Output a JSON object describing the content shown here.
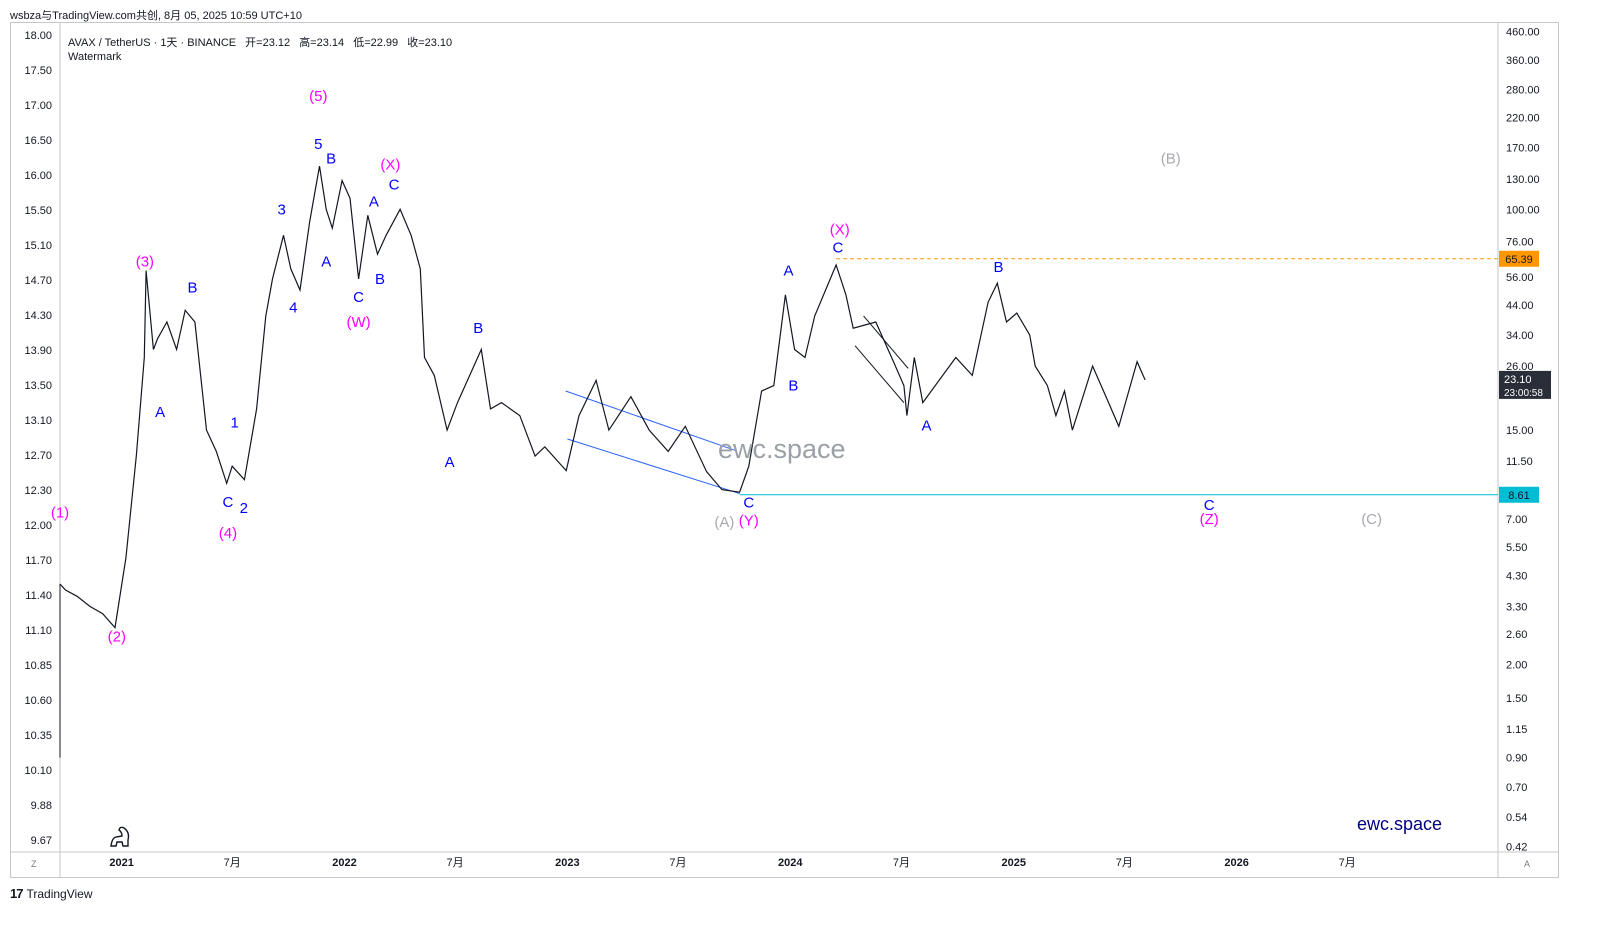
{
  "header": {
    "attribution": "wsbza与TradingView.com共创, 8月 05, 2025 10:59 UTC+10"
  },
  "legend": {
    "symbol": "AVAX / TetherUS · 1天 · BINANCE",
    "open": "开=23.12",
    "high": "高=23.14",
    "low": "低=22.99",
    "close": "收=23.10",
    "watermark_label": "Watermark"
  },
  "watermark": {
    "center_text": "ewc.space",
    "brand_text": "ewc.space"
  },
  "footer": {
    "logo": "17",
    "brand": "TradingView"
  },
  "corner_buttons": {
    "left": "Z",
    "right": "A"
  },
  "colors": {
    "wave_primary": "#ff00ff",
    "wave_minor": "#0000ff",
    "wave_gray": "#a8a8b0",
    "price_line": "#131722",
    "resistance": "#ff9800",
    "support": "#00bcd4",
    "last_price_bg": "#2a2e39"
  },
  "chart_data": {
    "type": "line",
    "title": "AVAX / TetherUS · 1天 · BINANCE",
    "scale": "log",
    "right_axis_ticks": [
      "460.00",
      "360.00",
      "280.00",
      "220.00",
      "170.00",
      "130.00",
      "100.00",
      "76.00",
      "56.00",
      "44.00",
      "34.00",
      "26.00",
      "15.00",
      "11.50",
      "7.00",
      "5.50",
      "4.30",
      "3.30",
      "2.60",
      "2.00",
      "1.50",
      "1.15",
      "0.90",
      "0.70",
      "0.54",
      "0.42"
    ],
    "right_axis_values": [
      460,
      360,
      280,
      220,
      170,
      130,
      100,
      76,
      56,
      44,
      34,
      26,
      15,
      11.5,
      7,
      5.5,
      4.3,
      3.3,
      2.6,
      2.0,
      1.5,
      1.15,
      0.9,
      0.7,
      0.54,
      0.42
    ],
    "left_axis_ticks": [
      "18.00",
      "17.50",
      "17.00",
      "16.50",
      "16.00",
      "15.50",
      "15.10",
      "14.70",
      "14.30",
      "13.90",
      "13.50",
      "13.10",
      "12.70",
      "12.30",
      "12.00",
      "11.70",
      "11.40",
      "11.10",
      "10.85",
      "10.60",
      "10.35",
      "10.10",
      "9.88",
      "9.67"
    ],
    "x_ticks": [
      {
        "label": "2021",
        "date": "2021-01-01",
        "bold": true
      },
      {
        "label": "7月",
        "date": "2021-07-01",
        "bold": false
      },
      {
        "label": "2022",
        "date": "2022-01-01",
        "bold": true
      },
      {
        "label": "7月",
        "date": "2022-07-01",
        "bold": false
      },
      {
        "label": "2023",
        "date": "2023-01-01",
        "bold": true
      },
      {
        "label": "7月",
        "date": "2023-07-01",
        "bold": false
      },
      {
        "label": "2024",
        "date": "2024-01-01",
        "bold": true
      },
      {
        "label": "7月",
        "date": "2024-07-01",
        "bold": false
      },
      {
        "label": "2025",
        "date": "2025-01-01",
        "bold": true
      },
      {
        "label": "7月",
        "date": "2025-07-01",
        "bold": false
      },
      {
        "label": "2026",
        "date": "2026-01-01",
        "bold": true
      },
      {
        "label": "7月",
        "date": "2026-07-01",
        "bold": false
      }
    ],
    "x_range": [
      "2020-09-22",
      "2027-03-05"
    ],
    "y_range": [
      0.4,
      500
    ],
    "series": [
      {
        "values": [
          [
            "2020-09-22",
            4.0
          ],
          [
            "2020-10-01",
            3.8
          ],
          [
            "2020-10-20",
            3.6
          ],
          [
            "2020-11-10",
            3.3
          ],
          [
            "2020-12-01",
            3.1
          ],
          [
            "2020-12-21",
            2.75
          ],
          [
            "2021-01-08",
            5.0
          ],
          [
            "2021-01-25",
            12.0
          ],
          [
            "2021-02-07",
            28.0
          ],
          [
            "2021-02-10",
            59.0
          ],
          [
            "2021-02-22",
            30.0
          ],
          [
            "2021-03-01",
            33.0
          ],
          [
            "2021-03-16",
            38.0
          ],
          [
            "2021-04-01",
            30.0
          ],
          [
            "2021-04-15",
            42.0
          ],
          [
            "2021-05-01",
            38.0
          ],
          [
            "2021-05-20",
            15.0
          ],
          [
            "2021-06-05",
            12.5
          ],
          [
            "2021-06-22",
            9.5
          ],
          [
            "2021-07-01",
            11.0
          ],
          [
            "2021-07-21",
            9.8
          ],
          [
            "2021-08-10",
            18.0
          ],
          [
            "2021-08-25",
            40.0
          ],
          [
            "2021-09-05",
            55.0
          ],
          [
            "2021-09-23",
            80.0
          ],
          [
            "2021-10-05",
            60.0
          ],
          [
            "2021-10-20",
            50.0
          ],
          [
            "2021-11-05",
            90.0
          ],
          [
            "2021-11-21",
            145.0
          ],
          [
            "2021-12-02",
            100.0
          ],
          [
            "2021-12-12",
            85.0
          ],
          [
            "2021-12-28",
            128.0
          ],
          [
            "2022-01-10",
            110.0
          ],
          [
            "2022-01-24",
            55.0
          ],
          [
            "2022-02-08",
            95.0
          ],
          [
            "2022-02-24",
            68.0
          ],
          [
            "2022-03-10",
            80.0
          ],
          [
            "2022-04-02",
            100.0
          ],
          [
            "2022-04-20",
            80.0
          ],
          [
            "2022-05-05",
            60.0
          ],
          [
            "2022-05-12",
            28.0
          ],
          [
            "2022-05-28",
            24.0
          ],
          [
            "2022-06-18",
            15.0
          ],
          [
            "2022-07-05",
            19.0
          ],
          [
            "2022-08-13",
            30.0
          ],
          [
            "2022-08-28",
            18.0
          ],
          [
            "2022-09-15",
            19.0
          ],
          [
            "2022-10-15",
            17.0
          ],
          [
            "2022-11-09",
            12.0
          ],
          [
            "2022-11-25",
            13.0
          ],
          [
            "2022-12-30",
            10.6
          ],
          [
            "2023-01-20",
            17.0
          ],
          [
            "2023-02-17",
            23.0
          ],
          [
            "2023-03-10",
            15.0
          ],
          [
            "2023-04-15",
            20.0
          ],
          [
            "2023-05-15",
            15.0
          ],
          [
            "2023-06-15",
            12.5
          ],
          [
            "2023-07-13",
            15.5
          ],
          [
            "2023-08-17",
            10.5
          ],
          [
            "2023-09-11",
            9.0
          ],
          [
            "2023-10-10",
            8.8
          ],
          [
            "2023-10-25",
            11.0
          ],
          [
            "2023-11-15",
            21.0
          ],
          [
            "2023-12-05",
            22.0
          ],
          [
            "2023-12-24",
            48.0
          ],
          [
            "2024-01-08",
            30.0
          ],
          [
            "2024-01-25",
            28.0
          ],
          [
            "2024-02-10",
            40.0
          ],
          [
            "2024-03-16",
            62.0
          ],
          [
            "2024-04-01",
            48.0
          ],
          [
            "2024-04-13",
            36.0
          ],
          [
            "2024-05-20",
            38.0
          ],
          [
            "2024-06-18",
            27.0
          ],
          [
            "2024-07-05",
            22.0
          ],
          [
            "2024-07-10",
            17.0
          ],
          [
            "2024-07-22",
            28.0
          ],
          [
            "2024-08-05",
            19.0
          ],
          [
            "2024-09-28",
            28.0
          ],
          [
            "2024-10-25",
            24.0
          ],
          [
            "2024-11-20",
            45.0
          ],
          [
            "2024-12-05",
            53.0
          ],
          [
            "2024-12-20",
            38.0
          ],
          [
            "2025-01-06",
            41.0
          ],
          [
            "2025-01-27",
            34.0
          ],
          [
            "2025-02-05",
            26.0
          ],
          [
            "2025-02-25",
            22.0
          ],
          [
            "2025-03-11",
            17.0
          ],
          [
            "2025-03-25",
            21.0
          ],
          [
            "2025-04-07",
            15.0
          ],
          [
            "2025-05-10",
            26.0
          ],
          [
            "2025-06-01",
            20.0
          ],
          [
            "2025-06-22",
            15.5
          ],
          [
            "2025-07-22",
            27.0
          ],
          [
            "2025-08-04",
            23.1
          ]
        ]
      }
    ],
    "lines": [
      {
        "kind": "resistance",
        "price": 65.39,
        "label": "65.39",
        "from": "2024-03-16"
      },
      {
        "kind": "support",
        "price": 8.61,
        "label": "8.61",
        "from": "2023-10-10"
      }
    ],
    "last_price": {
      "value": 23.1,
      "label": "23.10",
      "countdown": "23:00:58"
    },
    "trendlines": [
      [
        [
          "2023-01-01",
          13.9
        ],
        [
          "2023-10-10",
          8.7
        ]
      ],
      [
        [
          "2022-12-29",
          21.0
        ],
        [
          "2023-10-03",
          12.6
        ]
      ],
      [
        [
          "2024-04-16",
          31.0
        ],
        [
          "2024-07-05",
          19.0
        ]
      ],
      [
        [
          "2024-04-30",
          40.0
        ],
        [
          "2024-07-12",
          25.5
        ]
      ]
    ],
    "annotations": [
      {
        "text": "(1)",
        "date": "2020-09-22",
        "price": 7.4,
        "color": "primary"
      },
      {
        "text": "(2)",
        "date": "2020-12-24",
        "price": 2.55,
        "color": "primary"
      },
      {
        "text": "(3)",
        "date": "2021-02-08",
        "price": 64.0,
        "color": "primary"
      },
      {
        "text": "A",
        "date": "2021-03-05",
        "price": 17.5,
        "color": "minor"
      },
      {
        "text": "B",
        "date": "2021-04-27",
        "price": 51.0,
        "color": "minor"
      },
      {
        "text": "1",
        "date": "2021-07-05",
        "price": 16.0,
        "color": "minor"
      },
      {
        "text": "C",
        "date": "2021-06-24",
        "price": 8.1,
        "color": "minor"
      },
      {
        "text": "2",
        "date": "2021-07-20",
        "price": 7.7,
        "color": "minor"
      },
      {
        "text": "(4)",
        "date": "2021-06-24",
        "price": 6.2,
        "color": "primary"
      },
      {
        "text": "3",
        "date": "2021-09-20",
        "price": 100.0,
        "color": "minor"
      },
      {
        "text": "4",
        "date": "2021-10-09",
        "price": 43.0,
        "color": "minor"
      },
      {
        "text": "5",
        "date": "2021-11-19",
        "price": 175.0,
        "color": "minor"
      },
      {
        "text": "(5)",
        "date": "2021-11-19",
        "price": 265.0,
        "color": "primary"
      },
      {
        "text": "B",
        "date": "2021-12-10",
        "price": 155.0,
        "color": "minor"
      },
      {
        "text": "A",
        "date": "2021-12-02",
        "price": 64.0,
        "color": "minor"
      },
      {
        "text": "C",
        "date": "2022-01-24",
        "price": 47.0,
        "color": "minor"
      },
      {
        "text": "(W)",
        "date": "2022-01-24",
        "price": 38.0,
        "color": "primary"
      },
      {
        "text": "A",
        "date": "2022-02-18",
        "price": 107.0,
        "color": "minor"
      },
      {
        "text": "B",
        "date": "2022-02-28",
        "price": 55.0,
        "color": "minor"
      },
      {
        "text": "(X)",
        "date": "2022-03-17",
        "price": 147.0,
        "color": "primary"
      },
      {
        "text": "C",
        "date": "2022-03-23",
        "price": 124.0,
        "color": "minor"
      },
      {
        "text": "B",
        "date": "2022-08-08",
        "price": 36.0,
        "color": "minor"
      },
      {
        "text": "A",
        "date": "2022-06-22",
        "price": 11.4,
        "color": "minor"
      },
      {
        "text": "C",
        "date": "2023-10-25",
        "price": 8.05,
        "color": "minor"
      },
      {
        "text": "(Y)",
        "date": "2023-10-25",
        "price": 6.9,
        "color": "primary"
      },
      {
        "text": "(A)",
        "date": "2023-09-15",
        "price": 6.8,
        "color": "gray"
      },
      {
        "text": "A",
        "date": "2023-12-29",
        "price": 59.0,
        "color": "minor"
      },
      {
        "text": "B",
        "date": "2024-01-06",
        "price": 22.0,
        "color": "minor"
      },
      {
        "text": "(X)",
        "date": "2024-03-22",
        "price": 84.0,
        "color": "primary"
      },
      {
        "text": "C",
        "date": "2024-03-19",
        "price": 72.0,
        "color": "minor"
      },
      {
        "text": "A",
        "date": "2024-08-11",
        "price": 15.6,
        "color": "minor"
      },
      {
        "text": "B",
        "date": "2024-12-07",
        "price": 61.0,
        "color": "minor"
      },
      {
        "text": "(B)",
        "date": "2025-09-15",
        "price": 155.0,
        "color": "gray"
      },
      {
        "text": "C",
        "date": "2025-11-17",
        "price": 7.9,
        "color": "minor"
      },
      {
        "text": "(Z)",
        "date": "2025-11-17",
        "price": 7.0,
        "color": "primary"
      },
      {
        "text": "(C)",
        "date": "2026-08-10",
        "price": 7.0,
        "color": "gray"
      }
    ]
  }
}
